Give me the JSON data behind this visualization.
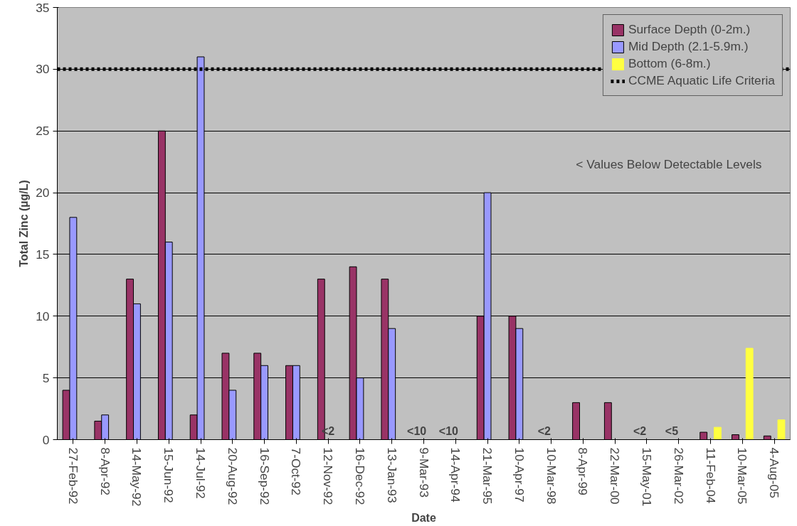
{
  "chart_data": {
    "type": "bar",
    "xlabel": "Date",
    "ylabel": "Total Zinc (µg/L)",
    "categories": [
      "27-Feb-92",
      "8-Apr-92",
      "14-May-92",
      "15-Jun-92",
      "14-Jul-92",
      "20-Aug-92",
      "16-Sep-92",
      "7-Oct-92",
      "12-Nov-92",
      "16-Dec-92",
      "13-Jan-93",
      "9-Mar-93",
      "14-Apr-94",
      "21-Mar-95",
      "10-Apr-97",
      "10-Mar-98",
      "8-Apr-99",
      "22-Mar-00",
      "15-May-01",
      "26-Mar-02",
      "11-Feb-04",
      "10-Mar-05",
      "4-Aug-05"
    ],
    "series": [
      {
        "name": "Surface Depth (0-2m.)",
        "color": "#993366",
        "values": [
          4,
          1.5,
          13,
          25,
          2,
          7,
          7,
          6,
          13,
          14,
          13,
          null,
          null,
          10,
          10,
          null,
          3,
          3,
          null,
          null,
          0.6,
          0.4,
          0.3
        ],
        "value_labels": [
          null,
          null,
          null,
          null,
          null,
          null,
          null,
          null,
          null,
          null,
          null,
          "<10",
          "<10",
          null,
          null,
          "<2",
          null,
          null,
          "<2",
          "<5",
          null,
          null,
          null
        ]
      },
      {
        "name": "Mid Depth (2.1-5.9m.)",
        "color": "#9999ff",
        "values": [
          18,
          2,
          11,
          16,
          31,
          4,
          6,
          6,
          null,
          5,
          9,
          null,
          null,
          20,
          9,
          null,
          null,
          null,
          null,
          null,
          null,
          null,
          null
        ],
        "value_labels": [
          null,
          null,
          null,
          null,
          null,
          null,
          null,
          null,
          "<2",
          null,
          null,
          null,
          null,
          null,
          null,
          null,
          null,
          null,
          null,
          null,
          null,
          null,
          null
        ]
      },
      {
        "name": "Bottom (6-8m.)",
        "color": "#ffff40",
        "values": [
          null,
          null,
          null,
          null,
          null,
          null,
          null,
          null,
          null,
          null,
          null,
          null,
          null,
          null,
          null,
          null,
          null,
          null,
          null,
          null,
          1,
          7.4,
          1.6
        ]
      }
    ],
    "ylim": [
      0,
      35
    ],
    "yticks": [
      0,
      5,
      10,
      15,
      20,
      25,
      30,
      35
    ],
    "grid": "y",
    "legend": "top right",
    "ref_lines": [
      {
        "axis": "y",
        "value": 30,
        "label": "CCME Aquatic Life Criteria",
        "color": "#000000",
        "line_style": "dotted"
      }
    ],
    "annotations": [
      "< Values Below Detectable Levels"
    ]
  }
}
